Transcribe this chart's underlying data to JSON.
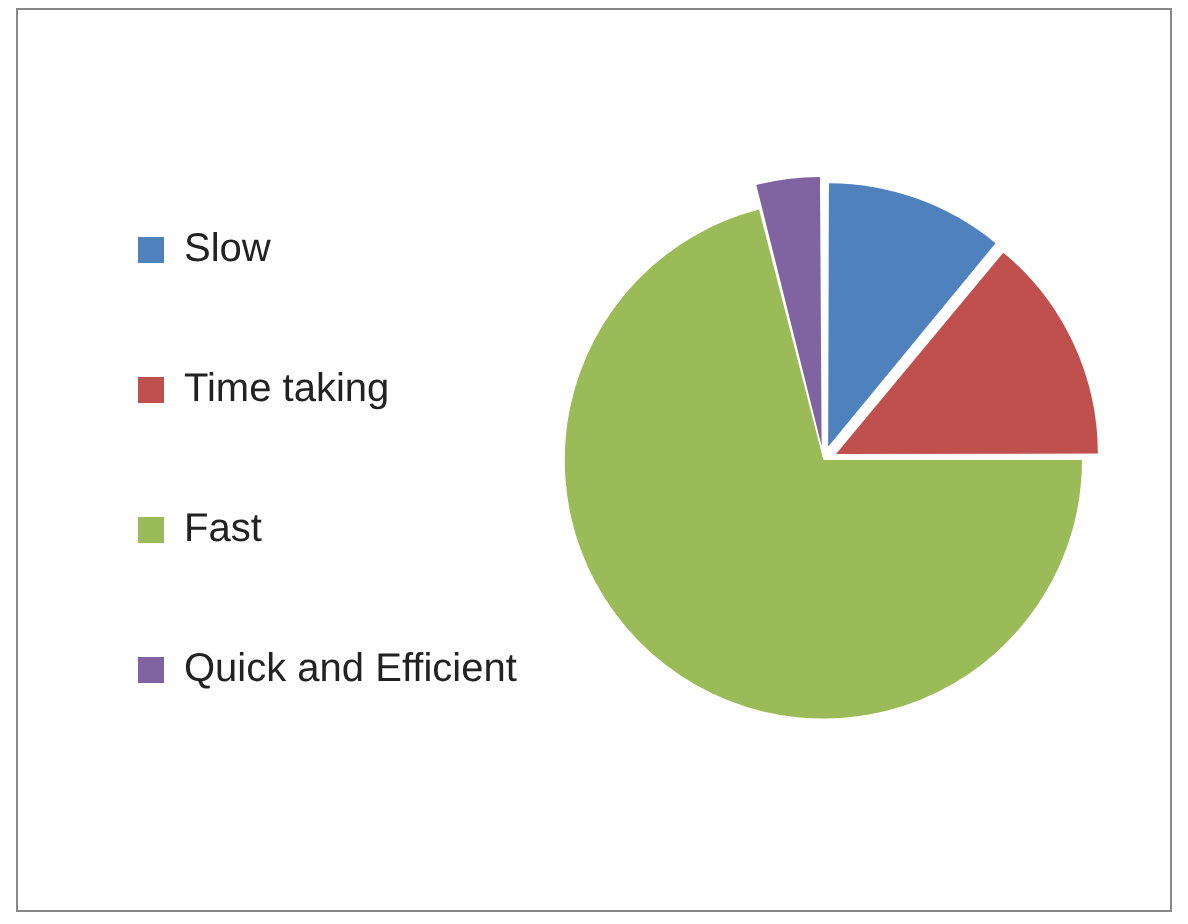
{
  "chart_data": {
    "type": "pie",
    "categories": [
      "Slow",
      "Time taking",
      "Fast",
      "Quick and Efficient"
    ],
    "values": [
      11,
      14,
      71,
      4
    ],
    "colors": [
      "#4f81bd",
      "#c0504d",
      "#9bbb59",
      "#8064a2"
    ],
    "legend": "left"
  }
}
